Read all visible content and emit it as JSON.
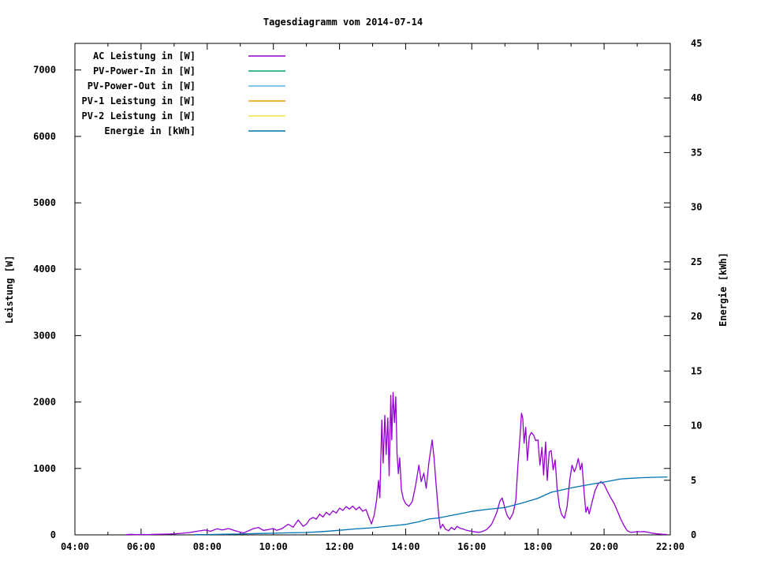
{
  "chart_data": {
    "type": "line",
    "title": "Tagesdiagramm vom 2014-07-14",
    "grid": false,
    "legend_position": "top-left-inside",
    "x_axis": {
      "min": 4,
      "max": 22,
      "major_step_hours": 2,
      "minor_step_hours": 1,
      "tick_labels": [
        "04:00",
        "06:00",
        "08:00",
        "10:00",
        "12:00",
        "14:00",
        "16:00",
        "18:00",
        "20:00",
        "22:00"
      ]
    },
    "y_left": {
      "label": "Leistung [W]",
      "min": 0,
      "max": 7400,
      "tick_step": 1000,
      "ticks": [
        0,
        1000,
        2000,
        3000,
        4000,
        5000,
        6000,
        7000
      ]
    },
    "y_right": {
      "label": "Energie [kWh]",
      "min": 0,
      "max": 45,
      "tick_step": 5,
      "ticks": [
        0,
        5,
        10,
        15,
        20,
        25,
        30,
        35,
        40,
        45
      ]
    },
    "series": [
      {
        "name": "AC Leistung in [W]",
        "color": "#9400d3",
        "axis": "left",
        "points": [
          [
            5.55,
            5
          ],
          [
            5.7,
            8
          ],
          [
            5.85,
            4
          ],
          [
            6.0,
            6
          ],
          [
            6.2,
            5
          ],
          [
            6.4,
            8
          ],
          [
            6.6,
            10
          ],
          [
            6.8,
            12
          ],
          [
            7.0,
            15
          ],
          [
            7.2,
            22
          ],
          [
            7.45,
            35
          ],
          [
            7.7,
            55
          ],
          [
            7.93,
            72
          ],
          [
            8.1,
            55
          ],
          [
            8.3,
            92
          ],
          [
            8.45,
            75
          ],
          [
            8.65,
            95
          ],
          [
            8.8,
            70
          ],
          [
            8.95,
            48
          ],
          [
            9.1,
            30
          ],
          [
            9.25,
            62
          ],
          [
            9.4,
            95
          ],
          [
            9.55,
            112
          ],
          [
            9.7,
            68
          ],
          [
            9.85,
            80
          ],
          [
            10.0,
            95
          ],
          [
            10.1,
            68
          ],
          [
            10.25,
            92
          ],
          [
            10.45,
            160
          ],
          [
            10.6,
            115
          ],
          [
            10.75,
            225
          ],
          [
            10.9,
            130
          ],
          [
            11.0,
            160
          ],
          [
            11.1,
            235
          ],
          [
            11.2,
            262
          ],
          [
            11.3,
            238
          ],
          [
            11.4,
            312
          ],
          [
            11.5,
            268
          ],
          [
            11.6,
            340
          ],
          [
            11.7,
            298
          ],
          [
            11.8,
            362
          ],
          [
            11.9,
            328
          ],
          [
            12.0,
            402
          ],
          [
            12.1,
            368
          ],
          [
            12.2,
            425
          ],
          [
            12.3,
            388
          ],
          [
            12.4,
            432
          ],
          [
            12.5,
            378
          ],
          [
            12.6,
            420
          ],
          [
            12.7,
            355
          ],
          [
            12.8,
            382
          ],
          [
            12.9,
            248
          ],
          [
            12.97,
            165
          ],
          [
            13.05,
            300
          ],
          [
            13.12,
            520
          ],
          [
            13.18,
            820
          ],
          [
            13.22,
            560
          ],
          [
            13.28,
            1730
          ],
          [
            13.32,
            1080
          ],
          [
            13.37,
            1800
          ],
          [
            13.41,
            1210
          ],
          [
            13.46,
            1760
          ],
          [
            13.5,
            890
          ],
          [
            13.55,
            2100
          ],
          [
            13.58,
            1430
          ],
          [
            13.62,
            2145
          ],
          [
            13.66,
            1690
          ],
          [
            13.7,
            2080
          ],
          [
            13.74,
            1230
          ],
          [
            13.78,
            920
          ],
          [
            13.82,
            1160
          ],
          [
            13.87,
            680
          ],
          [
            13.93,
            540
          ],
          [
            14.0,
            470
          ],
          [
            14.1,
            430
          ],
          [
            14.2,
            500
          ],
          [
            14.3,
            740
          ],
          [
            14.4,
            1050
          ],
          [
            14.47,
            800
          ],
          [
            14.55,
            930
          ],
          [
            14.62,
            700
          ],
          [
            14.7,
            1080
          ],
          [
            14.8,
            1430
          ],
          [
            14.86,
            1150
          ],
          [
            14.92,
            760
          ],
          [
            15.0,
            290
          ],
          [
            15.05,
            95
          ],
          [
            15.12,
            160
          ],
          [
            15.2,
            85
          ],
          [
            15.3,
            62
          ],
          [
            15.38,
            112
          ],
          [
            15.48,
            78
          ],
          [
            15.55,
            128
          ],
          [
            15.65,
            98
          ],
          [
            15.75,
            85
          ],
          [
            15.85,
            68
          ],
          [
            15.95,
            58
          ],
          [
            16.1,
            45
          ],
          [
            16.2,
            38
          ],
          [
            16.3,
            48
          ],
          [
            16.45,
            80
          ],
          [
            16.6,
            160
          ],
          [
            16.75,
            330
          ],
          [
            16.85,
            510
          ],
          [
            16.92,
            555
          ],
          [
            17.0,
            400
          ],
          [
            17.07,
            290
          ],
          [
            17.15,
            235
          ],
          [
            17.25,
            330
          ],
          [
            17.33,
            520
          ],
          [
            17.4,
            1100
          ],
          [
            17.46,
            1500
          ],
          [
            17.5,
            1830
          ],
          [
            17.54,
            1760
          ],
          [
            17.58,
            1380
          ],
          [
            17.63,
            1620
          ],
          [
            17.68,
            1120
          ],
          [
            17.74,
            1480
          ],
          [
            17.8,
            1540
          ],
          [
            17.87,
            1500
          ],
          [
            17.93,
            1420
          ],
          [
            18.0,
            1430
          ],
          [
            18.06,
            1050
          ],
          [
            18.12,
            1320
          ],
          [
            18.17,
            900
          ],
          [
            18.23,
            1400
          ],
          [
            18.28,
            820
          ],
          [
            18.34,
            1250
          ],
          [
            18.4,
            1270
          ],
          [
            18.46,
            980
          ],
          [
            18.52,
            1130
          ],
          [
            18.58,
            700
          ],
          [
            18.65,
            420
          ],
          [
            18.72,
            300
          ],
          [
            18.8,
            250
          ],
          [
            18.88,
            420
          ],
          [
            18.96,
            820
          ],
          [
            19.03,
            1050
          ],
          [
            19.1,
            950
          ],
          [
            19.16,
            1030
          ],
          [
            19.22,
            1150
          ],
          [
            19.28,
            980
          ],
          [
            19.33,
            1080
          ],
          [
            19.4,
            620
          ],
          [
            19.45,
            340
          ],
          [
            19.5,
            420
          ],
          [
            19.55,
            315
          ],
          [
            19.63,
            480
          ],
          [
            19.72,
            660
          ],
          [
            19.82,
            770
          ],
          [
            19.9,
            800
          ],
          [
            20.0,
            760
          ],
          [
            20.1,
            655
          ],
          [
            20.2,
            560
          ],
          [
            20.3,
            475
          ],
          [
            20.4,
            360
          ],
          [
            20.5,
            240
          ],
          [
            20.6,
            140
          ],
          [
            20.7,
            62
          ],
          [
            20.8,
            38
          ],
          [
            20.9,
            42
          ],
          [
            21.0,
            50
          ],
          [
            21.1,
            46
          ],
          [
            21.2,
            50
          ],
          [
            21.3,
            42
          ],
          [
            21.45,
            26
          ],
          [
            21.6,
            16
          ],
          [
            21.75,
            10
          ],
          [
            21.9,
            6
          ]
        ]
      },
      {
        "name": "PV-Power-In in [W]",
        "color": "#009e73",
        "axis": "left",
        "points": []
      },
      {
        "name": "PV-Power-Out in [W]",
        "color": "#56b4e9",
        "axis": "left",
        "points": []
      },
      {
        "name": "PV-1 Leistung in [W]",
        "color": "#e69f00",
        "axis": "left",
        "points": []
      },
      {
        "name": "PV-2 Leistung in [W]",
        "color": "#f0e442",
        "axis": "left",
        "points": []
      },
      {
        "name": "Energie in [kWh]",
        "color": "#0072b2",
        "axis": "right",
        "points": [
          [
            7.6,
            0.02
          ],
          [
            8.0,
            0.03
          ],
          [
            8.5,
            0.06
          ],
          [
            9.0,
            0.08
          ],
          [
            9.5,
            0.12
          ],
          [
            10.0,
            0.15
          ],
          [
            10.5,
            0.19
          ],
          [
            11.0,
            0.22
          ],
          [
            11.5,
            0.3
          ],
          [
            12.0,
            0.42
          ],
          [
            12.5,
            0.55
          ],
          [
            13.0,
            0.65
          ],
          [
            13.5,
            0.8
          ],
          [
            14.0,
            0.95
          ],
          [
            14.4,
            1.2
          ],
          [
            14.7,
            1.45
          ],
          [
            15.0,
            1.55
          ],
          [
            15.5,
            1.85
          ],
          [
            16.0,
            2.15
          ],
          [
            16.5,
            2.35
          ],
          [
            17.0,
            2.5
          ],
          [
            17.5,
            2.9
          ],
          [
            18.0,
            3.35
          ],
          [
            18.4,
            3.9
          ],
          [
            18.7,
            4.1
          ],
          [
            19.0,
            4.3
          ],
          [
            19.3,
            4.47
          ],
          [
            19.6,
            4.63
          ],
          [
            19.9,
            4.78
          ],
          [
            20.2,
            4.95
          ],
          [
            20.5,
            5.12
          ],
          [
            20.8,
            5.18
          ],
          [
            21.1,
            5.23
          ],
          [
            21.5,
            5.27
          ],
          [
            21.9,
            5.3
          ]
        ]
      }
    ]
  }
}
